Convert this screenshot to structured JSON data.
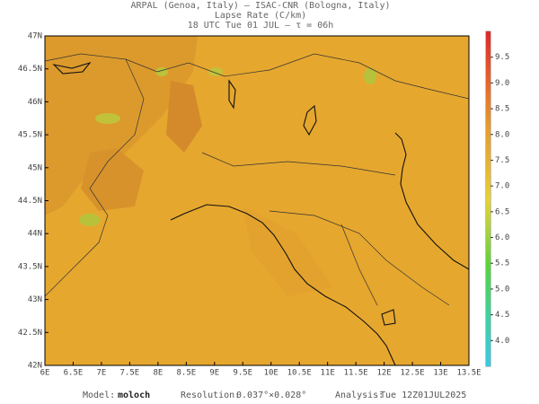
{
  "header": {
    "lines": [
      "ARPAL (Genoa, Italy)  –  ISAC-CNR (Bologna, Italy)",
      "Lapse Rate (C/km)",
      "18 UTC Tue 01 JUL  –  τ = 06h"
    ]
  },
  "map": {
    "lon_lim": [
      6,
      13.5
    ],
    "lat_lim": [
      42,
      47
    ],
    "lon_ticks": [
      {
        "value": 6,
        "label": "6E"
      },
      {
        "value": 6.5,
        "label": "6.5E"
      },
      {
        "value": 7,
        "label": "7E"
      },
      {
        "value": 7.5,
        "label": "7.5E"
      },
      {
        "value": 8,
        "label": "8E"
      },
      {
        "value": 8.5,
        "label": "8.5E"
      },
      {
        "value": 9,
        "label": "9E"
      },
      {
        "value": 9.5,
        "label": "9.5E"
      },
      {
        "value": 10,
        "label": "10E"
      },
      {
        "value": 10.5,
        "label": "10.5E"
      },
      {
        "value": 11,
        "label": "11E"
      },
      {
        "value": 11.5,
        "label": "11.5E"
      },
      {
        "value": 12,
        "label": "12E"
      },
      {
        "value": 12.5,
        "label": "12.5E"
      },
      {
        "value": 13,
        "label": "13E"
      },
      {
        "value": 13.5,
        "label": "13.5E"
      }
    ],
    "lat_ticks": [
      {
        "value": 42,
        "label": "42N"
      },
      {
        "value": 42.5,
        "label": "42.5N"
      },
      {
        "value": 43,
        "label": "43N"
      },
      {
        "value": 43.5,
        "label": "43.5N"
      },
      {
        "value": 44,
        "label": "44N"
      },
      {
        "value": 44.5,
        "label": "44.5N"
      },
      {
        "value": 45,
        "label": "45N"
      },
      {
        "value": 45.5,
        "label": "45.5N"
      },
      {
        "value": 46,
        "label": "46N"
      },
      {
        "value": 46.5,
        "label": "46.5N"
      },
      {
        "value": 47,
        "label": "47N"
      }
    ]
  },
  "colorbar": {
    "lim": [
      3.5,
      10
    ],
    "ticks": [
      {
        "value": 4,
        "label": "4.0"
      },
      {
        "value": 4.5,
        "label": "4.5"
      },
      {
        "value": 5,
        "label": "5.0"
      },
      {
        "value": 5.5,
        "label": "5.5"
      },
      {
        "value": 6,
        "label": "6.0"
      },
      {
        "value": 6.5,
        "label": "6.5"
      },
      {
        "value": 7,
        "label": "7.0"
      },
      {
        "value": 7.5,
        "label": "7.5"
      },
      {
        "value": 8,
        "label": "8.0"
      },
      {
        "value": 8.5,
        "label": "8.5"
      },
      {
        "value": 9,
        "label": "9.0"
      },
      {
        "value": 9.5,
        "label": "9.5"
      }
    ]
  },
  "footer": {
    "model_label": "Model:",
    "model": "moloch",
    "resolution_label": "Resolution:",
    "resolution": "0.037°×0.028°",
    "analysis_label": "Analysis:",
    "analysis": "Tue 12Z01JUL2025"
  }
}
